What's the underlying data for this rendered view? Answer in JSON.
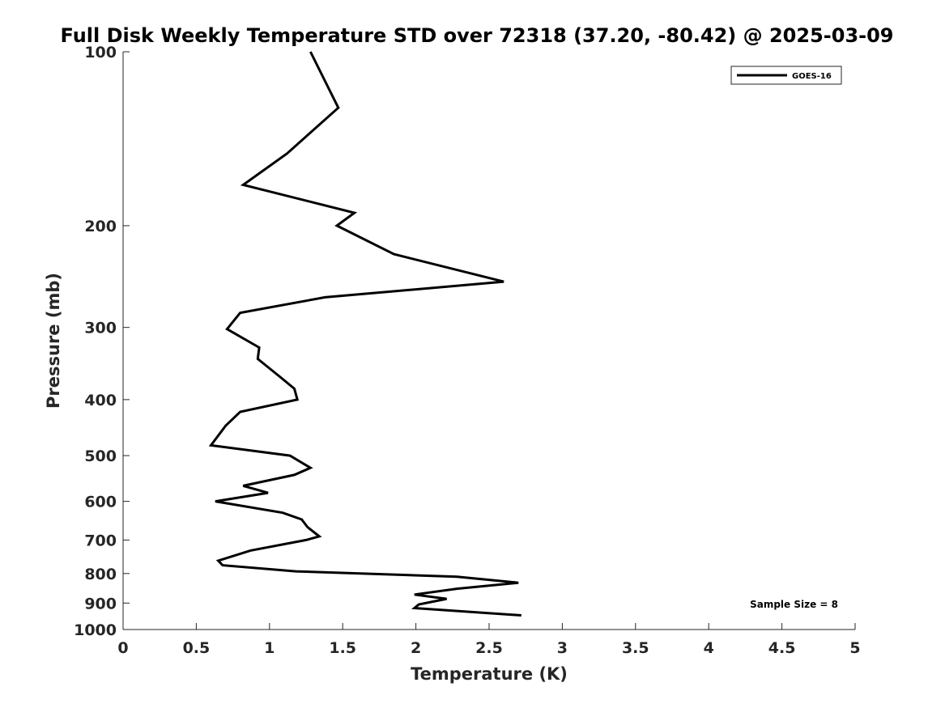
{
  "chart_data": {
    "type": "line",
    "title": "Full Disk Weekly Temperature STD over 72318 (37.20, -80.42) @ 2025-03-09",
    "xlabel": "Temperature (K)",
    "ylabel": "Pressure (mb)",
    "xlim": [
      0,
      5
    ],
    "ylim": [
      100,
      1000
    ],
    "y_scale": "log",
    "y_reversed": true,
    "x_ticks": [
      0,
      0.5,
      1,
      1.5,
      2,
      2.5,
      3,
      3.5,
      4,
      4.5,
      5
    ],
    "x_tick_labels": [
      "0",
      "0.5",
      "1",
      "1.5",
      "2",
      "2.5",
      "3",
      "3.5",
      "4",
      "4.5",
      "5"
    ],
    "y_ticks": [
      100,
      200,
      300,
      400,
      500,
      600,
      700,
      800,
      900,
      1000
    ],
    "y_tick_labels": [
      "100",
      "200",
      "300",
      "400",
      "500",
      "600",
      "700",
      "800",
      "900",
      "1000"
    ],
    "grid": false,
    "legend_position": "top-right",
    "annotation": "Sample Size = 8",
    "series": [
      {
        "name": "GOES-16",
        "color": "#000000",
        "points": [
          [
            1.28,
            100
          ],
          [
            1.47,
            125
          ],
          [
            1.12,
            150
          ],
          [
            0.82,
            170
          ],
          [
            1.58,
            190
          ],
          [
            1.46,
            200
          ],
          [
            1.85,
            224
          ],
          [
            2.6,
            250
          ],
          [
            1.38,
            266
          ],
          [
            0.8,
            283
          ],
          [
            0.71,
            302
          ],
          [
            0.93,
            325
          ],
          [
            0.92,
            340
          ],
          [
            1.07,
            365
          ],
          [
            1.17,
            383
          ],
          [
            1.19,
            400
          ],
          [
            0.8,
            420
          ],
          [
            0.7,
            444
          ],
          [
            0.6,
            480
          ],
          [
            1.14,
            500
          ],
          [
            1.28,
            525
          ],
          [
            1.17,
            540
          ],
          [
            0.82,
            564
          ],
          [
            0.99,
            580
          ],
          [
            0.63,
            600
          ],
          [
            1.09,
            628
          ],
          [
            1.22,
            645
          ],
          [
            1.26,
            665
          ],
          [
            1.34,
            690
          ],
          [
            1.25,
            700
          ],
          [
            0.87,
            730
          ],
          [
            0.65,
            760
          ],
          [
            0.68,
            774
          ],
          [
            1.18,
            793
          ],
          [
            2.28,
            810
          ],
          [
            2.7,
            830
          ],
          [
            2.28,
            850
          ],
          [
            1.99,
            870
          ],
          [
            2.21,
            885
          ],
          [
            2.02,
            905
          ],
          [
            1.99,
            918
          ],
          [
            2.72,
            945
          ]
        ]
      }
    ]
  }
}
